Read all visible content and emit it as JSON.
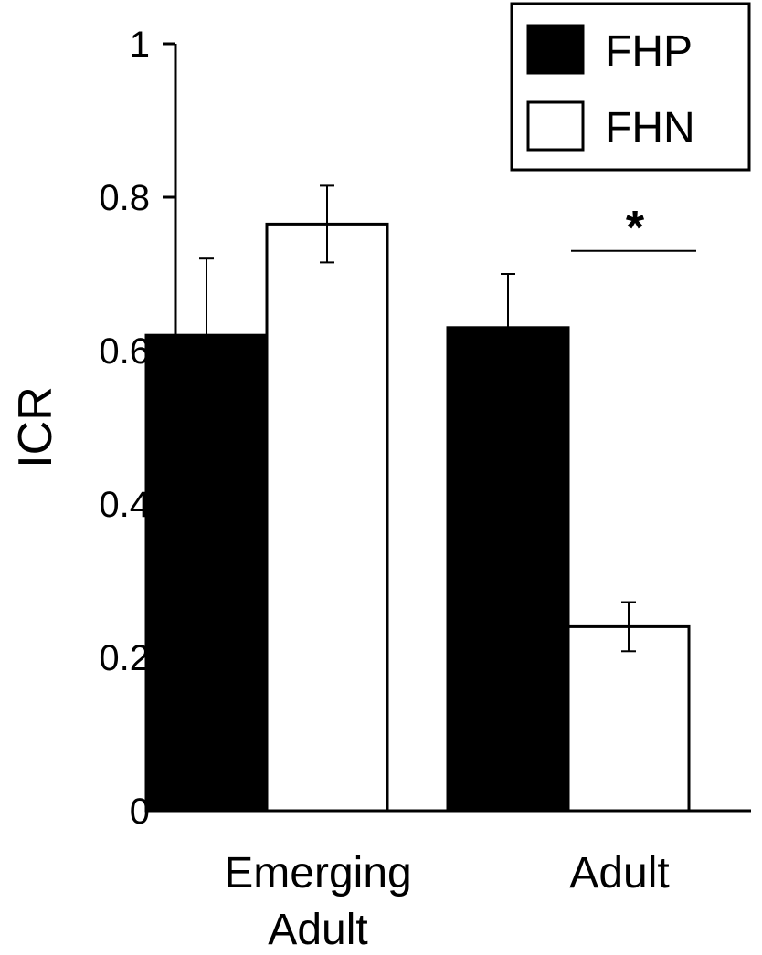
{
  "chart_data": {
    "type": "bar",
    "ylabel": "ICR",
    "ylim": [
      0,
      1
    ],
    "yticks": [
      "0",
      "0.2",
      "0.4",
      "0.6",
      "0.8",
      "1"
    ],
    "categories": [
      {
        "lines": [
          "Emerging",
          "Adult"
        ]
      },
      {
        "lines": [
          "Adult"
        ]
      }
    ],
    "series": [
      {
        "name": "FHP",
        "color": "#000000",
        "values": [
          0.62,
          0.63
        ],
        "errors": [
          0.1,
          0.07
        ]
      },
      {
        "name": "FHN",
        "color": "#ffffff",
        "values": [
          0.765,
          0.24
        ],
        "errors": [
          0.05,
          0.032
        ]
      }
    ],
    "legend_position": "top-right",
    "grid": false,
    "annotations": [
      {
        "text": "*",
        "category_index": 1,
        "y": 0.73
      }
    ]
  }
}
